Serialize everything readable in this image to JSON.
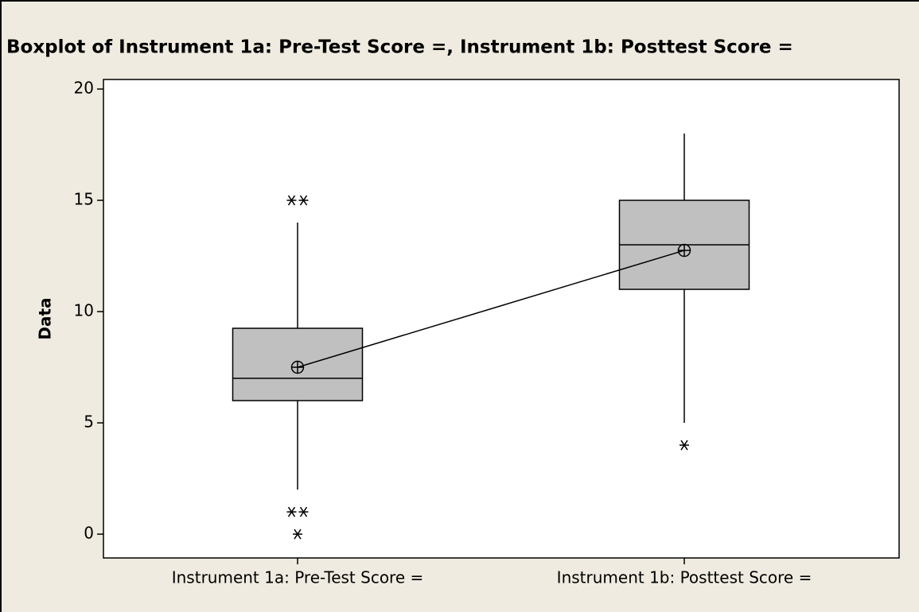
{
  "chart_data": {
    "type": "box",
    "title": "Boxplot of Instrument 1a: Pre-Test Score =, Instrument 1b: Posttest Score =",
    "ylabel": "Data",
    "categories": [
      "Instrument 1a: Pre-Test Score =",
      "Instrument 1b: Posttest Score ="
    ],
    "boxes": [
      {
        "whislo": 2,
        "q1": 6,
        "med": 7,
        "q3": 9.25,
        "whishi": 14,
        "mean": 7.5,
        "outliers": [
          15,
          15,
          1,
          1,
          0
        ]
      },
      {
        "whislo": 5,
        "q1": 11,
        "med": 13,
        "q3": 15,
        "whishi": 18,
        "mean": 12.75,
        "outliers": [
          4
        ]
      }
    ],
    "color": "#c0c0c0",
    "ylim": [
      -1.07,
      20.43
    ],
    "yticks": [
      0,
      5,
      10,
      15,
      20
    ]
  }
}
